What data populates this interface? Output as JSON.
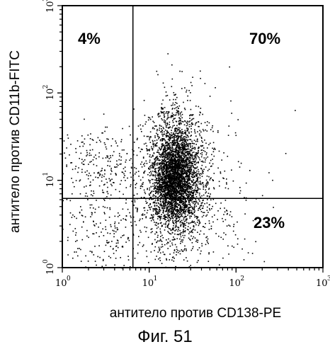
{
  "chart_data": {
    "type": "scatter",
    "scale": "log",
    "xlabel": "антитело против CD138-PE",
    "ylabel": "антитело против CD11b-FITC",
    "xlim": [
      1,
      1000
    ],
    "ylim": [
      1,
      1000
    ],
    "x_ticks": [
      {
        "base": "10",
        "exp": "0",
        "value": 1
      },
      {
        "base": "10",
        "exp": "1",
        "value": 10
      },
      {
        "base": "10",
        "exp": "2",
        "value": 100
      },
      {
        "base": "10",
        "exp": "3",
        "value": 1000
      }
    ],
    "y_ticks": [
      {
        "base": "10",
        "exp": "0",
        "value": 1
      },
      {
        "base": "10",
        "exp": "1",
        "value": 10
      },
      {
        "base": "10",
        "exp": "2",
        "value": 100
      },
      {
        "base": "10",
        "exp": "3",
        "value": 1000
      }
    ],
    "gates": {
      "x": 6.5,
      "y": 6.2
    },
    "quadrants": [
      {
        "position": "upper-left",
        "label": "4%"
      },
      {
        "position": "upper-right",
        "label": "70%"
      },
      {
        "position": "lower-right",
        "label": "23%"
      }
    ],
    "populations": [
      {
        "name_hint": "main",
        "x_center": 20,
        "y_center": 12,
        "x_spread": 0.16,
        "y_spread": 0.38,
        "count": 2600
      },
      {
        "name_hint": "main-core",
        "x_center": 19,
        "y_center": 10,
        "x_spread": 0.1,
        "y_spread": 0.22,
        "count": 1400
      },
      {
        "name_hint": "upper-left-cloud",
        "x_center": 2.6,
        "y_center": 15,
        "x_spread": 0.28,
        "y_spread": 0.25,
        "count": 260
      },
      {
        "name_hint": "lower-left-cloud",
        "x_center": 3.0,
        "y_center": 2.5,
        "x_spread": 0.35,
        "y_spread": 0.3,
        "count": 260
      },
      {
        "name_hint": "spread",
        "x_center": 30,
        "y_center": 6,
        "x_spread": 0.35,
        "y_spread": 0.45,
        "count": 500
      }
    ],
    "colors": {
      "points": "#000000",
      "axes": "#000000",
      "background": "#ffffff"
    }
  },
  "caption": "Фиг. 51"
}
